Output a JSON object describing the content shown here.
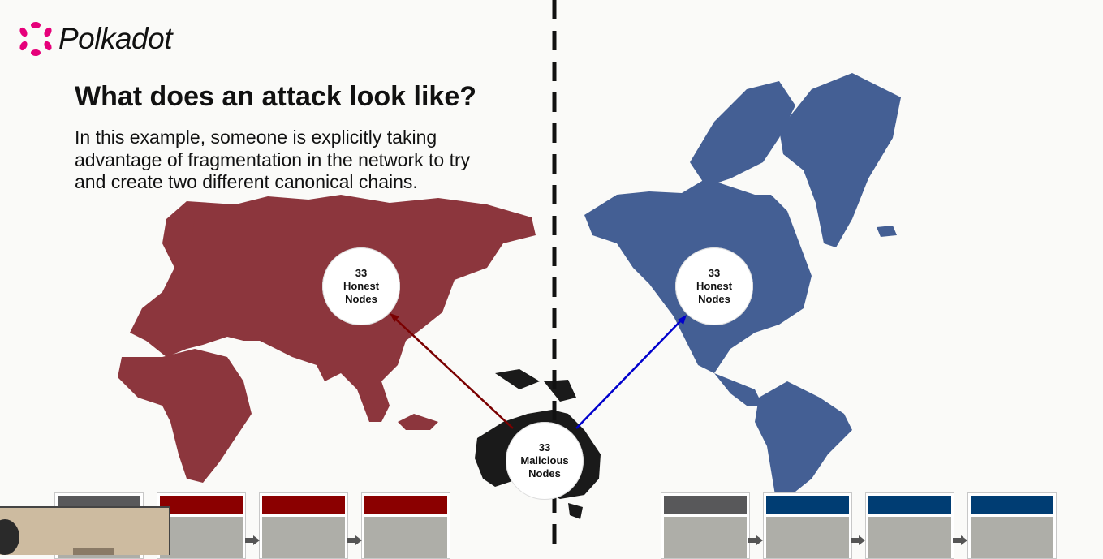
{
  "brand": {
    "name": "Polkadot",
    "color": "#e6007a"
  },
  "slide": {
    "title": "What does an attack look like?",
    "description": "In this example, someone is explicitly taking advantage of fragmentation in the network to try and create two different canonical chains."
  },
  "nodes": {
    "left": {
      "count": "33",
      "line1": "Honest",
      "line2": "Nodes"
    },
    "right": {
      "count": "33",
      "line1": "Honest",
      "line2": "Nodes"
    },
    "malicious": {
      "count": "33",
      "line1": "Malicious",
      "line2": "Nodes"
    }
  },
  "colors": {
    "left_region": "#8c363d",
    "right_region": "#445f94",
    "malicious_region": "#1a1a1a",
    "left_chain_header": "#8b0000",
    "right_chain_header": "#003d73",
    "genesis_header": "#58585a",
    "block_body": "#aeaea8"
  },
  "icons": {
    "logo": "polkadot-logo-icon",
    "left_arrow": "arrow-icon",
    "right_arrow": "arrow-icon"
  }
}
